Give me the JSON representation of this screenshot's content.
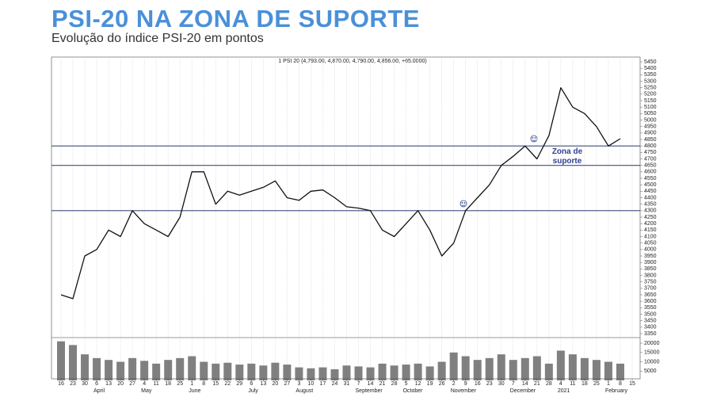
{
  "chart_data": {
    "type": "line",
    "title": "PSI-20 NA ZONA DE SUPORTE",
    "subtitle": "Evolução do índice PSI-20 em pontos",
    "series_header": "1 PSI 20 (4,793.00, 4,870.00, 4,790.00, 4,856.00, +65.0000)",
    "annotation": "Zona de suporte",
    "categories": [
      "16",
      "23",
      "30",
      "6",
      "13",
      "20",
      "27",
      "4",
      "11",
      "18",
      "25",
      "1",
      "8",
      "15",
      "22",
      "29",
      "6",
      "13",
      "20",
      "27",
      "3",
      "10",
      "17",
      "24",
      "31",
      "7",
      "14",
      "21",
      "28",
      "5",
      "12",
      "19",
      "26",
      "2",
      "9",
      "16",
      "23",
      "30",
      "7",
      "14",
      "21",
      "28",
      "4",
      "11",
      "18",
      "25",
      "1",
      "8",
      "15"
    ],
    "month_labels": [
      null,
      null,
      null,
      "April",
      null,
      null,
      null,
      "May",
      null,
      null,
      null,
      "June",
      null,
      null,
      null,
      null,
      "July",
      null,
      null,
      null,
      "August",
      null,
      null,
      null,
      null,
      "September",
      null,
      null,
      null,
      "October",
      null,
      null,
      null,
      "November",
      null,
      null,
      null,
      null,
      "December",
      null,
      null,
      null,
      "2021",
      null,
      null,
      null,
      "February",
      null,
      null
    ],
    "series": [
      {
        "name": "PSI 20",
        "color": "#111111",
        "values": [
          3650,
          3620,
          3950,
          4000,
          4150,
          4100,
          4300,
          4200,
          4150,
          4100,
          4250,
          4600,
          4600,
          4350,
          4450,
          4420,
          4450,
          4480,
          4530,
          4400,
          4380,
          4450,
          4460,
          4400,
          4330,
          4320,
          4300,
          4150,
          4100,
          4200,
          4300,
          4150,
          3950,
          4050,
          4300,
          4400,
          4500,
          4650,
          4720,
          4800,
          4700,
          4880,
          5250,
          5100,
          5050,
          4950,
          4800,
          4856,
          null
        ]
      },
      {
        "name": "Volume",
        "color": "#555555",
        "axis": "y2",
        "values": [
          21000,
          19000,
          14000,
          12000,
          11000,
          10000,
          12000,
          10500,
          9000,
          11000,
          12000,
          13000,
          10000,
          9000,
          9500,
          8500,
          9000,
          8000,
          9500,
          8500,
          7000,
          6500,
          7000,
          6000,
          8000,
          7500,
          7000,
          9000,
          8000,
          8500,
          9000,
          7500,
          10000,
          15000,
          13000,
          11000,
          12000,
          14000,
          11000,
          12000,
          13000,
          9000,
          16000,
          14000,
          12000,
          11000,
          10000,
          9000,
          null
        ]
      }
    ],
    "support_levels": [
      4800,
      4650,
      4300
    ],
    "support_color": "#3d4f7c",
    "ylim": [
      3350,
      5450
    ],
    "yticks": [
      5450,
      5400,
      5350,
      5300,
      5250,
      5200,
      5150,
      5100,
      5050,
      5000,
      4950,
      4900,
      4850,
      4800,
      4750,
      4700,
      4650,
      4600,
      4550,
      4500,
      4450,
      4400,
      4350,
      4300,
      4250,
      4200,
      4150,
      4100,
      4050,
      4000,
      3950,
      3900,
      3850,
      3800,
      3750,
      3700,
      3650,
      3600,
      3550,
      3500,
      3450,
      3400,
      3350
    ],
    "y2lim": [
      0,
      23000
    ],
    "y2ticks": [
      20000,
      15000,
      10000,
      5000
    ],
    "grid": true
  }
}
